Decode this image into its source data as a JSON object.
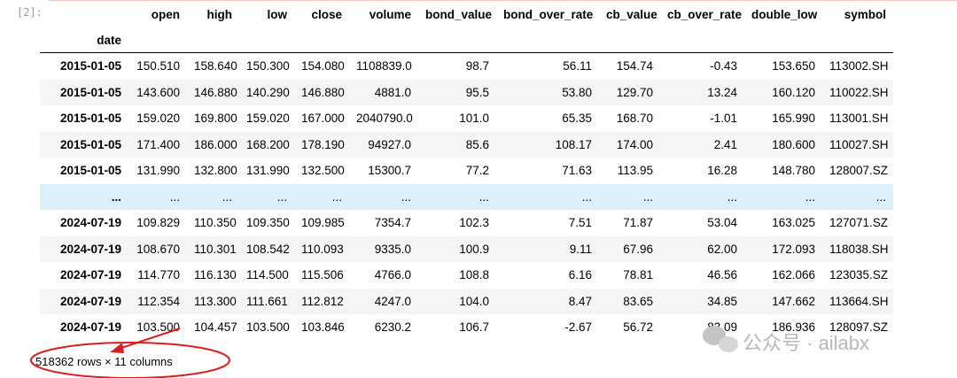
{
  "prompt": "[2]:",
  "table": {
    "columns": [
      "open",
      "high",
      "low",
      "close",
      "volume",
      "bond_value",
      "bond_over_rate",
      "cb_value",
      "cb_over_rate",
      "double_low",
      "symbol"
    ],
    "index_name": "date",
    "rows": [
      [
        "2015-01-05",
        "150.510",
        "158.640",
        "150.300",
        "154.080",
        "1108839.0",
        "98.7",
        "56.11",
        "154.74",
        "-0.43",
        "153.650",
        "113002.SH"
      ],
      [
        "2015-01-05",
        "143.600",
        "146.880",
        "140.290",
        "146.880",
        "4881.0",
        "95.5",
        "53.80",
        "129.70",
        "13.24",
        "160.120",
        "110022.SH"
      ],
      [
        "2015-01-05",
        "159.020",
        "169.800",
        "159.020",
        "167.000",
        "2040790.0",
        "101.0",
        "65.35",
        "168.70",
        "-1.01",
        "165.990",
        "113001.SH"
      ],
      [
        "2015-01-05",
        "171.400",
        "186.000",
        "168.200",
        "178.190",
        "94927.0",
        "85.6",
        "108.17",
        "174.00",
        "2.41",
        "180.600",
        "110027.SH"
      ],
      [
        "2015-01-05",
        "131.990",
        "132.800",
        "131.990",
        "132.500",
        "15300.7",
        "77.2",
        "71.63",
        "113.95",
        "16.28",
        "148.780",
        "128007.SZ"
      ],
      [
        "...",
        "...",
        "...",
        "...",
        "...",
        "...",
        "...",
        "...",
        "...",
        "...",
        "...",
        "..."
      ],
      [
        "2024-07-19",
        "109.829",
        "110.350",
        "109.350",
        "109.985",
        "7354.7",
        "102.3",
        "7.51",
        "71.87",
        "53.04",
        "163.025",
        "127071.SZ"
      ],
      [
        "2024-07-19",
        "108.670",
        "110.301",
        "108.542",
        "110.093",
        "9335.0",
        "100.9",
        "9.11",
        "67.96",
        "62.00",
        "172.093",
        "118038.SH"
      ],
      [
        "2024-07-19",
        "114.770",
        "116.130",
        "114.500",
        "115.506",
        "4766.0",
        "108.8",
        "6.16",
        "78.81",
        "46.56",
        "162.066",
        "123035.SZ"
      ],
      [
        "2024-07-19",
        "112.354",
        "113.300",
        "111.661",
        "112.812",
        "4247.0",
        "104.0",
        "8.47",
        "83.65",
        "34.85",
        "147.662",
        "113664.SH"
      ],
      [
        "2024-07-19",
        "103.500",
        "104.457",
        "103.500",
        "103.846",
        "6230.2",
        "106.7",
        "-2.67",
        "56.72",
        "83.09",
        "186.936",
        "128097.SZ"
      ]
    ],
    "shape": "518362 rows × 11 columns"
  },
  "watermark": "公众号 · ailabx"
}
